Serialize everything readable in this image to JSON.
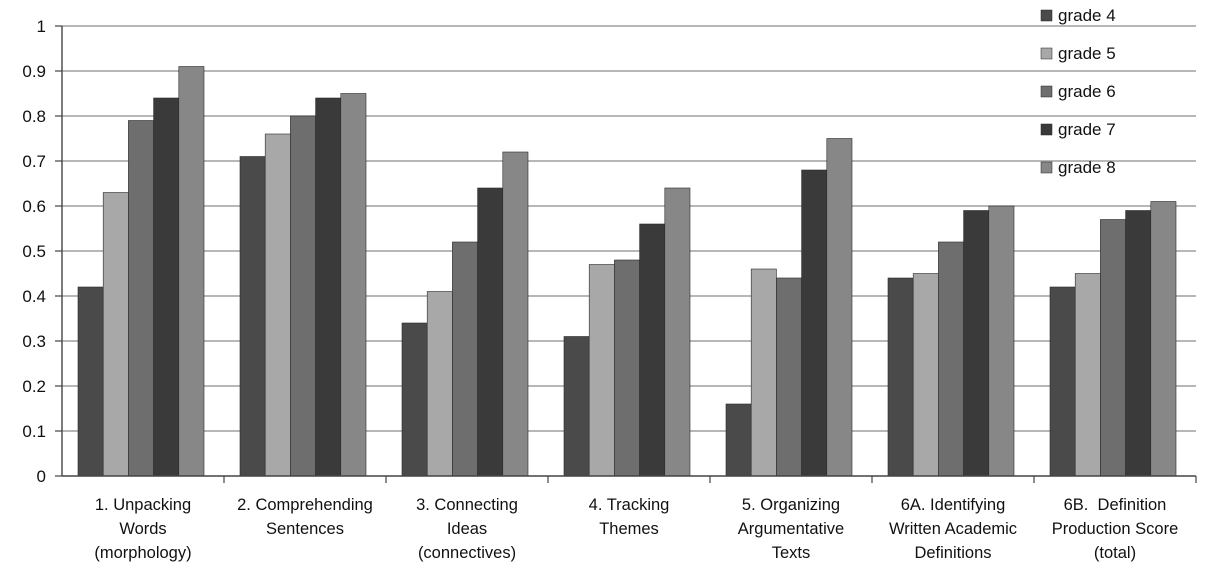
{
  "chart_data": {
    "type": "bar",
    "title": "",
    "xlabel": "",
    "ylabel": "",
    "ylim": [
      0,
      1
    ],
    "yticks": [
      "0",
      "0.1",
      "0.2",
      "0.3",
      "0.4",
      "0.5",
      "0.6",
      "0.7",
      "0.8",
      "0.9",
      "1"
    ],
    "grid": true,
    "legend_position": "top-right",
    "categories": [
      [
        "1. Unpacking",
        "Words",
        "(morphology)"
      ],
      [
        "2. Comprehending",
        "Sentences"
      ],
      [
        "3. Connecting",
        "Ideas",
        "(connectives)"
      ],
      [
        "4. Tracking",
        "Themes"
      ],
      [
        "5. Organizing",
        "Argumentative",
        "Texts"
      ],
      [
        "6A. Identifying",
        "Written Academic",
        "Definitions"
      ],
      [
        "6B.  Definition",
        "Production Score",
        "(total)"
      ]
    ],
    "series": [
      {
        "name": "grade 4",
        "color": "#4a4a4a",
        "values": [
          0.42,
          0.71,
          0.34,
          0.31,
          0.16,
          0.44,
          0.42
        ]
      },
      {
        "name": "grade 5",
        "color": "#a8a8a8",
        "values": [
          0.63,
          0.76,
          0.41,
          0.47,
          0.46,
          0.45,
          0.45
        ]
      },
      {
        "name": "grade 6",
        "color": "#6e6e6e",
        "values": [
          0.79,
          0.8,
          0.52,
          0.48,
          0.44,
          0.52,
          0.57
        ]
      },
      {
        "name": "grade 7",
        "color": "#3a3a3a",
        "values": [
          0.84,
          0.84,
          0.64,
          0.56,
          0.68,
          0.59,
          0.59
        ]
      },
      {
        "name": "grade 8",
        "color": "#878787",
        "values": [
          0.91,
          0.85,
          0.72,
          0.64,
          0.75,
          0.6,
          0.61
        ]
      }
    ]
  }
}
